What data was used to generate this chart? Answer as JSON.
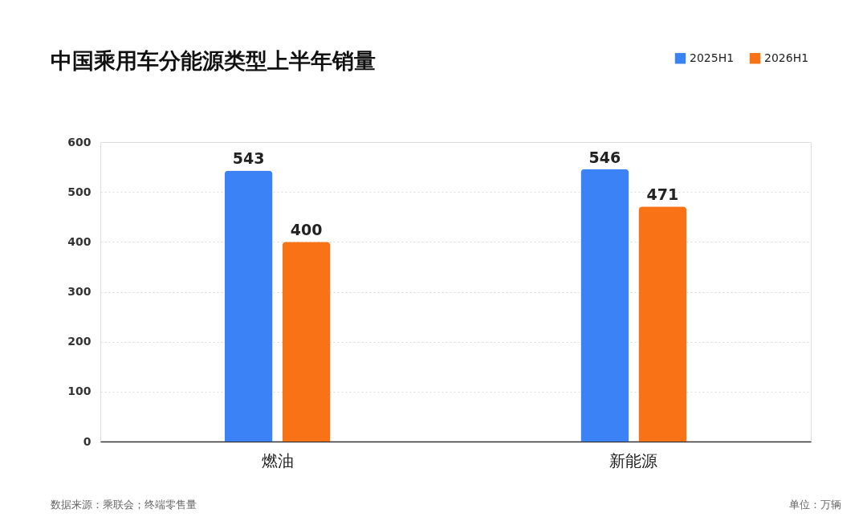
{
  "chart_data": {
    "type": "bar",
    "title": "中国乘用车分能源类型上半年销量",
    "categories": [
      "燃油",
      "新能源"
    ],
    "series": [
      {
        "name": "2025H1",
        "color": "#3b82f6",
        "values": [
          543,
          546
        ]
      },
      {
        "name": "2026H1",
        "color": "#f97316",
        "values": [
          400,
          471
        ]
      }
    ],
    "ylim": [
      0,
      600
    ],
    "yticks": [
      0,
      100,
      200,
      300,
      400,
      500,
      600
    ],
    "grid": "y",
    "legend": "top right",
    "data_labels": true,
    "annotations": [
      "数据来源：乘联会；终端零售量",
      "单位：万辆"
    ]
  }
}
